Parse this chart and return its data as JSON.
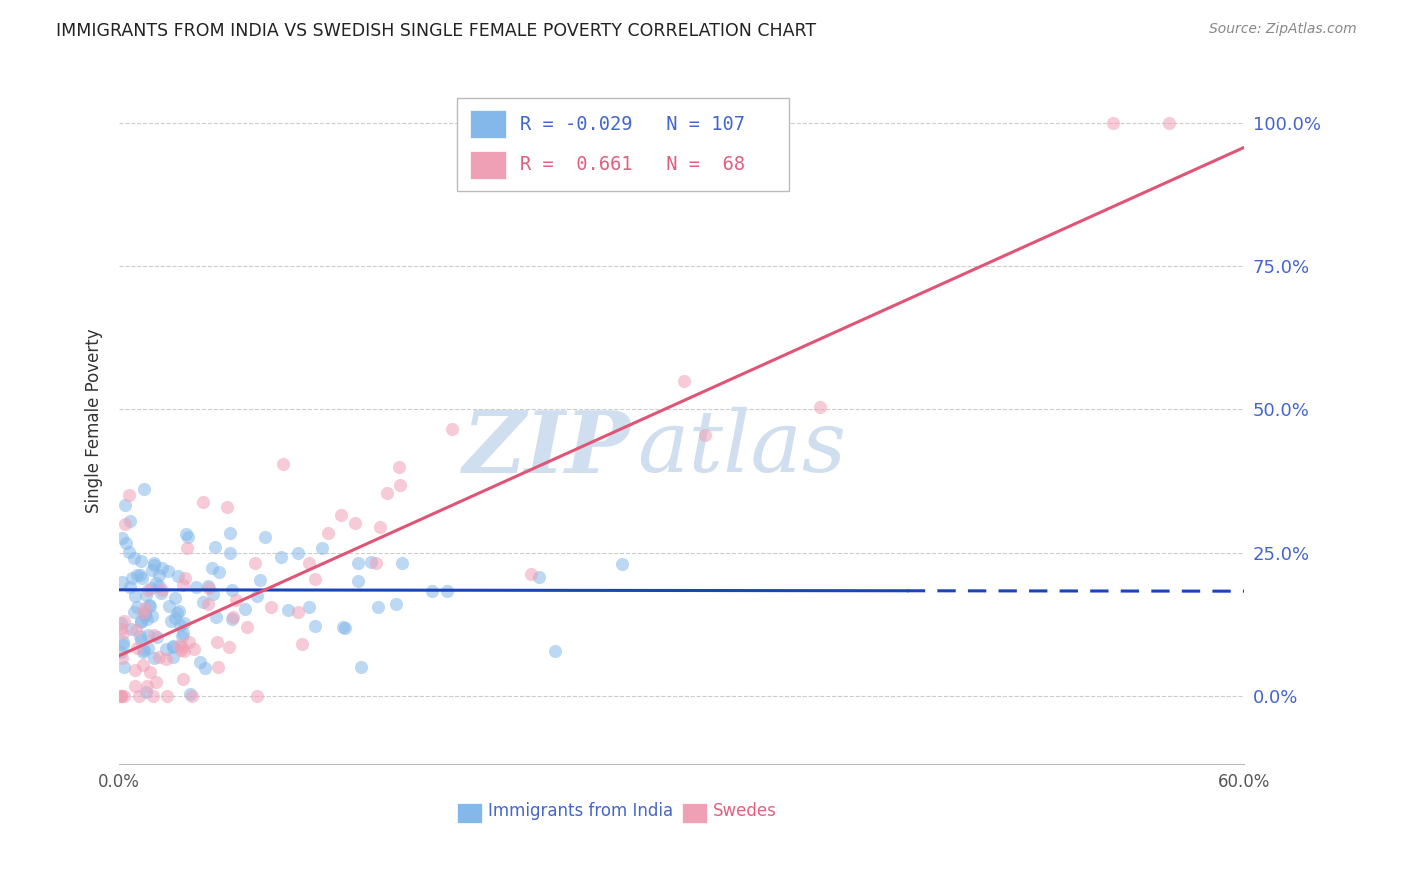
{
  "title": "IMMIGRANTS FROM INDIA VS SWEDISH SINGLE FEMALE POVERTY CORRELATION CHART",
  "source": "Source: ZipAtlas.com",
  "ylabel": "Single Female Poverty",
  "xlim": [
    0.0,
    0.6
  ],
  "ylim": [
    -0.12,
    1.08
  ],
  "ytick_values": [
    0.0,
    0.25,
    0.5,
    0.75,
    1.0
  ],
  "ytick_labels": [
    "0.0%",
    "25.0%",
    "50.0%",
    "75.0%",
    "100.0%"
  ],
  "xtick_values": [
    0.0,
    0.12,
    0.24,
    0.36,
    0.48,
    0.6
  ],
  "xtick_labels": [
    "0.0%",
    "",
    "",
    "",
    "",
    "60.0%"
  ],
  "legend_blue_R": "-0.029",
  "legend_blue_N": "107",
  "legend_pink_R": "0.661",
  "legend_pink_N": "68",
  "blue_color": "#85B8EA",
  "pink_color": "#F0A0B5",
  "blue_line_color": "#1A44BB",
  "pink_line_color": "#E05575",
  "watermark_color": "#D0DFEF",
  "background_color": "#FFFFFF",
  "title_color": "#222222",
  "source_color": "#888888",
  "axis_label_color": "#333333",
  "right_tick_color": "#4466CC",
  "legend_label_blue": "Immigrants from India",
  "legend_label_pink": "Swedes",
  "blue_line_intercept": 0.185,
  "blue_line_slope": -0.004,
  "blue_line_solid_end": 0.42,
  "blue_line_end": 0.6,
  "pink_line_intercept": 0.07,
  "pink_line_slope": 1.48
}
